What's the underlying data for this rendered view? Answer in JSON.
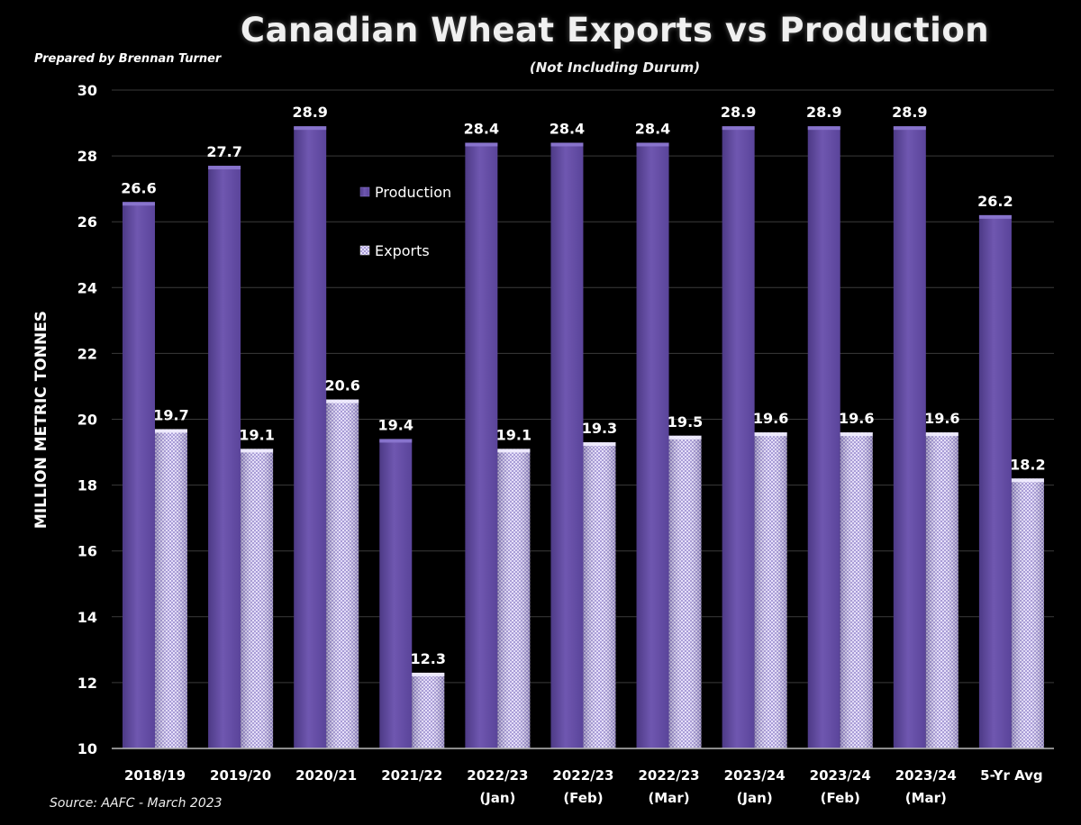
{
  "header": {
    "title": "Canadian Wheat Exports vs Production",
    "subtitle": "(Not Including Durum)",
    "prepared_by": "Prepared by Brennan Turner",
    "source": "Source: AAFC -  March 2023"
  },
  "chart_data": {
    "type": "bar",
    "title": "Canadian Wheat Exports vs Production",
    "subtitle": "(Not Including Durum)",
    "ylabel": "MILLION METRIC TONNES",
    "xlabel": "",
    "ylim": [
      10,
      30
    ],
    "yticks": [
      "10",
      "12",
      "14",
      "16",
      "18",
      "20",
      "22",
      "24",
      "26",
      "28",
      "30"
    ],
    "grid": true,
    "legend_position": "upper-left-inside",
    "categories": [
      [
        "2018/19"
      ],
      [
        "2019/20"
      ],
      [
        "2020/21"
      ],
      [
        "2021/22"
      ],
      [
        "2022/23",
        "(Jan)"
      ],
      [
        "2022/23",
        "(Feb)"
      ],
      [
        "2022/23",
        "(Mar)"
      ],
      [
        "2023/24",
        "(Jan)"
      ],
      [
        "2023/24",
        "(Feb)"
      ],
      [
        "2023/24",
        "(Mar)"
      ],
      [
        "5-Yr Avg"
      ]
    ],
    "series": [
      {
        "name": "Production",
        "color": "#6a52a8",
        "values": [
          26.6,
          27.7,
          28.9,
          19.4,
          28.4,
          28.4,
          28.4,
          28.9,
          28.9,
          28.9,
          26.2
        ],
        "labels": [
          "26.6",
          "27.7",
          "28.9",
          "19.4",
          "28.4",
          "28.4",
          "28.4",
          "28.9",
          "28.9",
          "28.9",
          "26.2"
        ]
      },
      {
        "name": "Exports",
        "color": "#b8aee0",
        "values": [
          19.7,
          19.1,
          20.6,
          12.3,
          19.1,
          19.3,
          19.5,
          19.6,
          19.6,
          19.6,
          18.2
        ],
        "labels": [
          "19.7",
          "19.1",
          "20.6",
          "12.3",
          "19.1",
          "19.3",
          "19.5",
          "19.6",
          "19.6",
          "19.6",
          "18.2"
        ]
      }
    ]
  }
}
